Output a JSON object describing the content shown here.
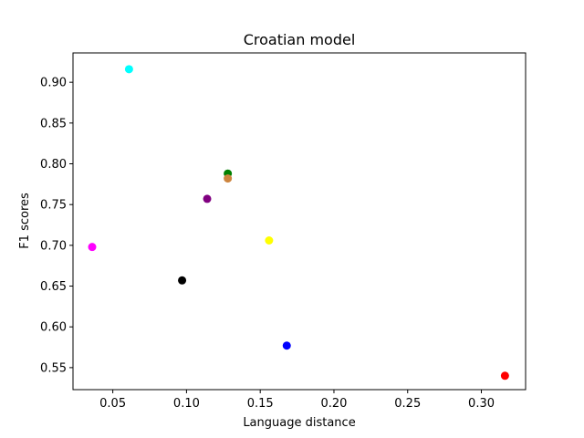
{
  "chart_data": {
    "type": "scatter",
    "title": "Croatian model",
    "xlabel": "Language distance",
    "ylabel": "F1 scores",
    "xlim": [
      0.023,
      0.33
    ],
    "ylim": [
      0.523,
      0.936
    ],
    "xticks": [
      0.05,
      0.1,
      0.15,
      0.2,
      0.25,
      0.3
    ],
    "xtick_labels": [
      "0.05",
      "0.10",
      "0.15",
      "0.20",
      "0.25",
      "0.30"
    ],
    "yticks": [
      0.55,
      0.6,
      0.65,
      0.7,
      0.75,
      0.8,
      0.85,
      0.9
    ],
    "ytick_labels": [
      "0.55",
      "0.60",
      "0.65",
      "0.70",
      "0.75",
      "0.80",
      "0.85",
      "0.90"
    ],
    "grid": false,
    "points": [
      {
        "x": 0.061,
        "y": 0.916,
        "color": "#00ffff"
      },
      {
        "x": 0.128,
        "y": 0.788,
        "color": "#008000"
      },
      {
        "x": 0.128,
        "y": 0.782,
        "color": "#cd853f"
      },
      {
        "x": 0.114,
        "y": 0.757,
        "color": "#800080"
      },
      {
        "x": 0.036,
        "y": 0.698,
        "color": "#ff00ff"
      },
      {
        "x": 0.156,
        "y": 0.706,
        "color": "#ffff00"
      },
      {
        "x": 0.097,
        "y": 0.657,
        "color": "#000000"
      },
      {
        "x": 0.168,
        "y": 0.577,
        "color": "#0000ff"
      },
      {
        "x": 0.316,
        "y": 0.54,
        "color": "#ff0000"
      }
    ]
  }
}
